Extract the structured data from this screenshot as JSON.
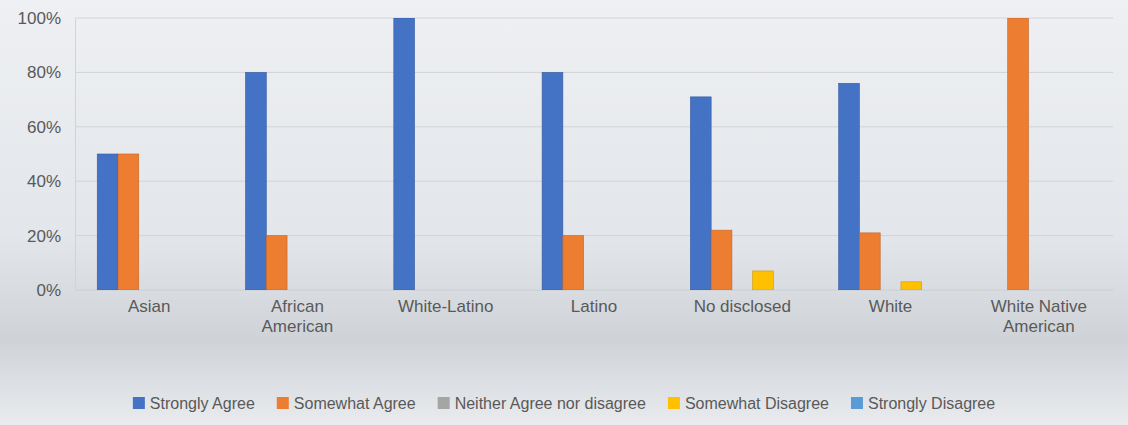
{
  "chart_data": {
    "type": "bar",
    "categories": [
      "Asian",
      "African American",
      "White-Latino",
      "Latino",
      "No disclosed",
      "White",
      "White Native American"
    ],
    "series": [
      {
        "name": "Strongly Agree",
        "color": "#4472c4",
        "values": [
          50,
          80,
          100,
          80,
          71,
          76,
          0
        ]
      },
      {
        "name": "Somewhat Agree",
        "color": "#ed7d31",
        "values": [
          50,
          20,
          0,
          20,
          22,
          21,
          100
        ]
      },
      {
        "name": "Neither Agree nor disagree",
        "color": "#a5a5a5",
        "values": [
          0,
          0,
          0,
          0,
          0,
          0,
          0
        ]
      },
      {
        "name": "Somewhat Disagree",
        "color": "#ffc000",
        "values": [
          0,
          0,
          0,
          0,
          7,
          3,
          0
        ]
      },
      {
        "name": "Strongly Disagree",
        "color": "#5b9bd5",
        "values": [
          0,
          0,
          0,
          0,
          0,
          0,
          0
        ]
      }
    ],
    "ylim": [
      0,
      100
    ],
    "yticks": [
      {
        "value": 0,
        "label": "0%"
      },
      {
        "value": 20,
        "label": "20%"
      },
      {
        "value": 40,
        "label": "40%"
      },
      {
        "value": 60,
        "label": "60%"
      },
      {
        "value": 80,
        "label": "80%"
      },
      {
        "value": 100,
        "label": "100%"
      }
    ],
    "grid": true,
    "legend": "bottom"
  }
}
